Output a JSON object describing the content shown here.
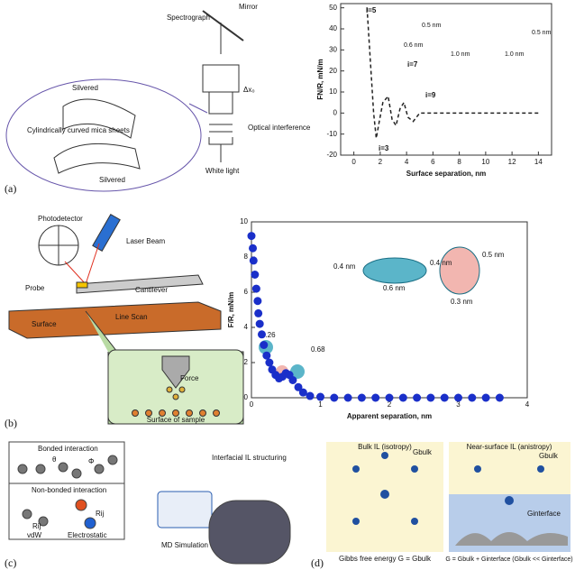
{
  "panel_a": {
    "label": "(a)",
    "spectrograph": "Spectrograph",
    "mirror": "Mirror",
    "dx": "Δx₀",
    "silvered_top": "Silvered",
    "mica": "Cylindrically curved mica sheets",
    "silvered_bottom": "Silvered",
    "optical": "Optical interference",
    "white_light": "White light",
    "annotations": [
      "i=5",
      "i=7",
      "i=9",
      "i=3",
      "0.5 nm",
      "0.6 nm",
      "1.0 nm",
      "1.0 nm",
      "0.5 nm"
    ]
  },
  "panel_b": {
    "label": "(b)",
    "photodetector": "Photodetector",
    "laser": "Laser Beam",
    "cantilever": "Cantilever",
    "probe": "Probe",
    "line_scan": "Line Scan",
    "surface": "Surface",
    "force": "Force",
    "sample": "Surface of sample",
    "annotations": [
      "0.26",
      "0.68",
      "0.4 nm",
      "0.6 nm",
      "0.4 nm",
      "0.5 nm",
      "0.3 nm"
    ]
  },
  "panel_c": {
    "label": "(c)",
    "bonded": "Bonded interaction",
    "theta": "θ",
    "phi": "Φ",
    "nonbonded": "Non-bonded interaction",
    "rij1": "Rij",
    "rij2": "Rij",
    "vdw": "vdW",
    "electrostatic": "Electrostatic",
    "structuring": "Interfacial IL structuring",
    "md": "MD Simulation"
  },
  "panel_d": {
    "label": "(d)",
    "bulk_title": "Bulk IL (isotropy)",
    "g_bulk_1": "Gbulk",
    "near_title": "Near-surface IL (anistropy)",
    "g_bulk_2": "Gbulk",
    "g_interface": "Ginterface",
    "bulk_eq": "Gibbs free energy G = Gbulk",
    "near_eq": "G = Gbulk + Ginterface (Gbulk << Ginterface)"
  },
  "chart_data": [
    {
      "type": "line",
      "xlabel": "Surface separation, nm",
      "ylabel": "FN/R, mN/m",
      "color": "#222222",
      "dashed": true,
      "x": [
        1.0,
        1.3,
        1.5,
        1.7,
        1.9,
        2.2,
        2.6,
        2.9,
        3.2,
        3.5,
        3.8,
        4.1,
        4.5,
        5,
        6,
        8,
        14
      ],
      "values": [
        50,
        20,
        0,
        -12,
        -5,
        5,
        8,
        -3,
        -6,
        2,
        5,
        -2,
        -4,
        0,
        0,
        0,
        0
      ],
      "xlim": [
        -1,
        15
      ],
      "ylim": [
        -20,
        52
      ],
      "xticks": [
        0,
        2,
        4,
        6,
        8,
        10,
        12,
        14
      ],
      "yticks": [
        -20,
        -10,
        0,
        10,
        20,
        30,
        40,
        50
      ]
    },
    {
      "type": "scatter",
      "xlabel": "Apparent separation, nm",
      "ylabel": "F/R, mN/m",
      "color": "#1a2fc9",
      "x": [
        0,
        0.02,
        0.03,
        0.05,
        0.07,
        0.09,
        0.1,
        0.12,
        0.15,
        0.18,
        0.22,
        0.26,
        0.3,
        0.35,
        0.4,
        0.45,
        0.5,
        0.55,
        0.6,
        0.68,
        0.75,
        0.85,
        1,
        1.2,
        1.4,
        1.6,
        1.8,
        2,
        2.2,
        2.4,
        2.6,
        2.8,
        3,
        3.2,
        3.4,
        3.6
      ],
      "values": [
        9.2,
        8.5,
        7.8,
        7,
        6.2,
        5.5,
        4.8,
        4.2,
        3.6,
        3,
        2.4,
        2,
        1.6,
        1.3,
        1.1,
        1.2,
        1.4,
        1.3,
        1,
        0.6,
        0.3,
        0.1,
        0.05,
        0,
        0,
        0,
        0,
        0,
        0,
        0,
        0,
        0,
        0,
        0,
        0,
        0
      ],
      "xlim": [
        0,
        4
      ],
      "ylim": [
        0,
        10
      ],
      "xticks": [
        0,
        1,
        2,
        3,
        4
      ],
      "yticks": [
        0,
        2,
        4,
        6,
        8,
        10
      ]
    }
  ]
}
